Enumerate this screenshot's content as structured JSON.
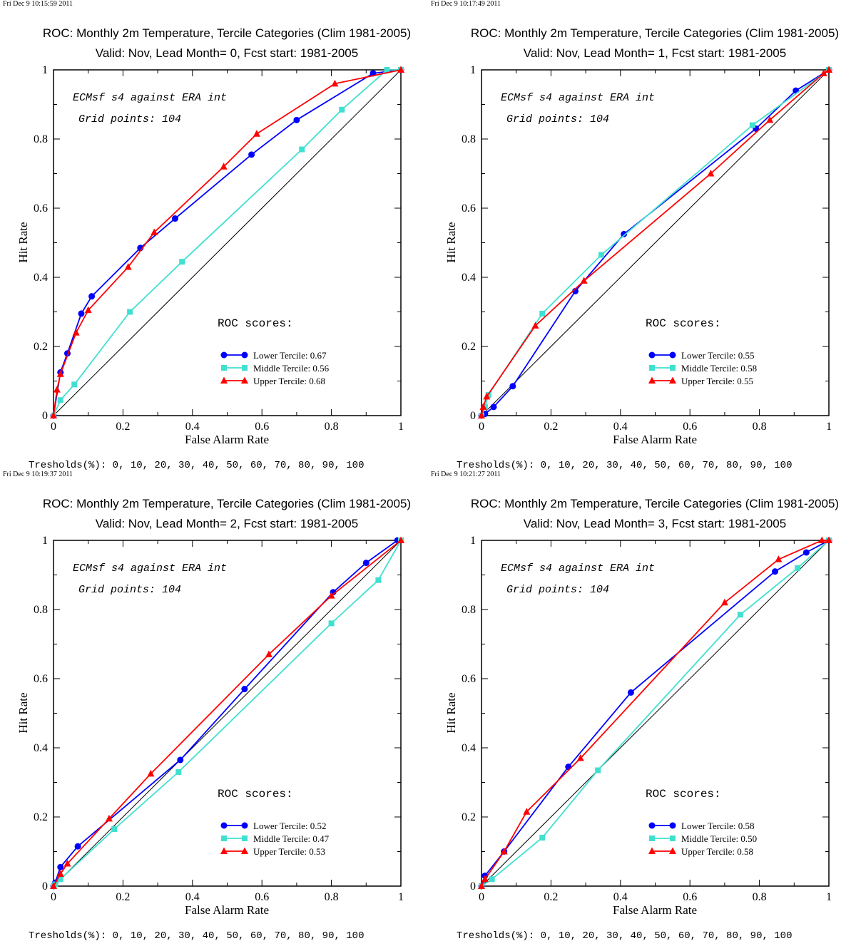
{
  "thresholds_text": "Tresholds(%): 0, 10, 20, 30, 40, 50, 60, 70, 80, 90, 100",
  "annotation_1": "ECMsf s4 against ERA int",
  "annotation_2": "Grid points:  104",
  "roc_scores_label": "ROC scores:",
  "colors": {
    "lower": "#0000ff",
    "middle": "#40e0d0",
    "upper": "#ff0000",
    "diagonal": "#000000"
  },
  "chart_data": [
    {
      "type": "line",
      "timestamp": "Fri Dec  9 10:15:59 2011",
      "title": "ROC: Monthly 2m Temperature, Tercile Categories (Clim 1981-2005)",
      "subtitle": "Valid: Nov, Lead Month= 0, Fcst start: 1981-2005",
      "xlabel": "False Alarm Rate",
      "ylabel": "Hit Rate",
      "xlim": [
        0,
        1
      ],
      "ylim": [
        0,
        1
      ],
      "xticks": [
        "0",
        "0.2",
        "0.4",
        "0.6",
        "0.8",
        "1"
      ],
      "yticks": [
        "0",
        "0.2",
        "0.4",
        "0.6",
        "0.8",
        "1"
      ],
      "series": [
        {
          "name": "Lower Tercile: 0.67",
          "marker": "circle",
          "x": [
            0,
            0.02,
            0.04,
            0.08,
            0.11,
            0.25,
            0.35,
            0.57,
            0.7,
            0.92,
            1
          ],
          "y": [
            0,
            0.125,
            0.18,
            0.295,
            0.345,
            0.485,
            0.57,
            0.755,
            0.855,
            0.99,
            1
          ]
        },
        {
          "name": "Middle Tercile: 0.56",
          "marker": "square",
          "x": [
            0,
            0.02,
            0.06,
            0.22,
            0.37,
            0.715,
            0.83,
            0.96,
            1
          ],
          "y": [
            0,
            0.045,
            0.09,
            0.3,
            0.445,
            0.77,
            0.885,
            1.0,
            1
          ]
        },
        {
          "name": "Upper Tercile: 0.68",
          "marker": "triangle",
          "x": [
            0,
            0.01,
            0.02,
            0.065,
            0.1,
            0.215,
            0.29,
            0.49,
            0.585,
            0.81,
            1
          ],
          "y": [
            0,
            0.075,
            0.12,
            0.24,
            0.305,
            0.43,
            0.53,
            0.72,
            0.815,
            0.96,
            1
          ]
        }
      ]
    },
    {
      "type": "line",
      "timestamp": "Fri Dec  9 10:17:49 2011",
      "title": "ROC: Monthly 2m Temperature, Tercile Categories (Clim 1981-2005)",
      "subtitle": "Valid: Nov, Lead Month= 1, Fcst start: 1981-2005",
      "xlabel": "False Alarm Rate",
      "ylabel": "Hit Rate",
      "xlim": [
        0,
        1
      ],
      "ylim": [
        0,
        1
      ],
      "xticks": [
        "0",
        "0.2",
        "0.4",
        "0.6",
        "0.8",
        "1"
      ],
      "yticks": [
        "0",
        "0.2",
        "0.4",
        "0.6",
        "0.8",
        "1"
      ],
      "series": [
        {
          "name": "Lower Tercile: 0.55",
          "marker": "circle",
          "x": [
            0,
            0.01,
            0.035,
            0.09,
            0.27,
            0.41,
            0.79,
            0.905,
            1
          ],
          "y": [
            0,
            0.005,
            0.025,
            0.085,
            0.36,
            0.525,
            0.83,
            0.94,
            1
          ]
        },
        {
          "name": "Middle Tercile: 0.58",
          "marker": "square",
          "x": [
            0,
            0.01,
            0.02,
            0.175,
            0.345,
            0.78,
            1
          ],
          "y": [
            0,
            0.025,
            0.06,
            0.295,
            0.465,
            0.84,
            1
          ]
        },
        {
          "name": "Upper Tercile: 0.55",
          "marker": "triangle",
          "x": [
            0,
            0.005,
            0.015,
            0.155,
            0.295,
            0.66,
            0.83,
            0.985,
            1
          ],
          "y": [
            0,
            0.025,
            0.055,
            0.26,
            0.39,
            0.7,
            0.855,
            0.99,
            1
          ]
        }
      ]
    },
    {
      "type": "line",
      "timestamp": "Fri Dec  9 10:19:37 2011",
      "title": "ROC: Monthly 2m Temperature, Tercile Categories (Clim 1981-2005)",
      "subtitle": "Valid: Nov, Lead Month= 2, Fcst start: 1981-2005",
      "xlabel": "False Alarm Rate",
      "ylabel": "Hit Rate",
      "xlim": [
        0,
        1
      ],
      "ylim": [
        0,
        1
      ],
      "xticks": [
        "0",
        "0.2",
        "0.4",
        "0.6",
        "0.8",
        "1"
      ],
      "yticks": [
        "0",
        "0.2",
        "0.4",
        "0.6",
        "0.8",
        "1"
      ],
      "series": [
        {
          "name": "Lower Tercile: 0.52",
          "marker": "circle",
          "x": [
            0,
            0.005,
            0.02,
            0.07,
            0.365,
            0.55,
            0.805,
            0.9,
            0.99
          ],
          "y": [
            0,
            0.01,
            0.055,
            0.115,
            0.365,
            0.57,
            0.85,
            0.935,
            1
          ]
        },
        {
          "name": "Middle Tercile: 0.47",
          "marker": "square",
          "x": [
            0,
            0.005,
            0.02,
            0.175,
            0.36,
            0.8,
            0.935,
            1
          ],
          "y": [
            0,
            0.005,
            0.02,
            0.165,
            0.33,
            0.76,
            0.885,
            1
          ]
        },
        {
          "name": "Upper Tercile: 0.53",
          "marker": "triangle",
          "x": [
            0,
            0.02,
            0.04,
            0.16,
            0.28,
            0.62,
            0.8,
            1
          ],
          "y": [
            0,
            0.035,
            0.065,
            0.195,
            0.325,
            0.67,
            0.84,
            1
          ]
        }
      ]
    },
    {
      "type": "line",
      "timestamp": "Fri Dec  9 10:21:27 2011",
      "title": "ROC: Monthly 2m Temperature, Tercile Categories (Clim 1981-2005)",
      "subtitle": "Valid: Nov, Lead Month= 3, Fcst start: 1981-2005",
      "xlabel": "False Alarm Rate",
      "ylabel": "Hit Rate",
      "xlim": [
        0,
        1
      ],
      "ylim": [
        0,
        1
      ],
      "xticks": [
        "0",
        "0.2",
        "0.4",
        "0.6",
        "0.8",
        "1"
      ],
      "yticks": [
        "0",
        "0.2",
        "0.4",
        "0.6",
        "0.8",
        "1"
      ],
      "series": [
        {
          "name": "Lower Tercile: 0.58",
          "marker": "circle",
          "x": [
            0,
            0.01,
            0.065,
            0.25,
            0.43,
            0.845,
            0.935,
            1
          ],
          "y": [
            0,
            0.03,
            0.1,
            0.345,
            0.56,
            0.91,
            0.965,
            1
          ]
        },
        {
          "name": "Middle Tercile: 0.50",
          "marker": "square",
          "x": [
            0,
            0.03,
            0.175,
            0.335,
            0.745,
            0.91,
            1
          ],
          "y": [
            0,
            0.02,
            0.14,
            0.335,
            0.785,
            0.92,
            1
          ]
        },
        {
          "name": "Upper Tercile: 0.58",
          "marker": "triangle",
          "x": [
            0,
            0.01,
            0.065,
            0.13,
            0.285,
            0.7,
            0.855,
            0.98,
            1
          ],
          "y": [
            0,
            0.02,
            0.1,
            0.215,
            0.37,
            0.82,
            0.945,
            1,
            1
          ]
        }
      ]
    }
  ]
}
